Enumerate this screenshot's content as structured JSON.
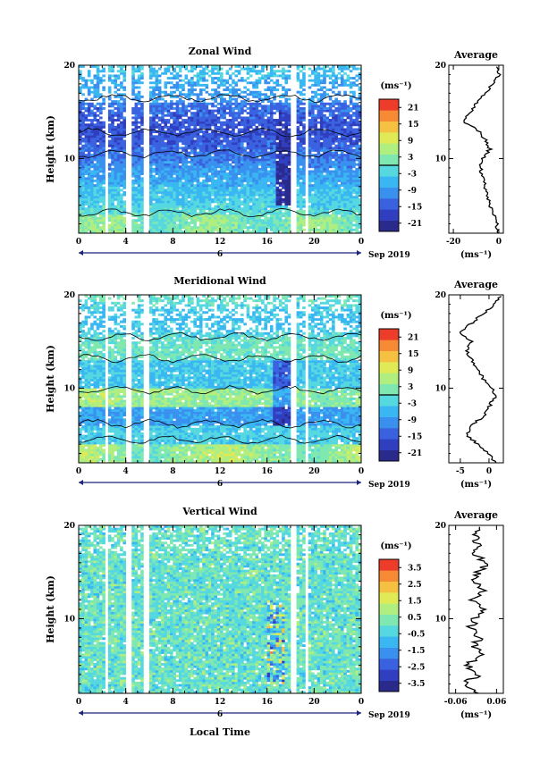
{
  "figure": {
    "xlabel": "Local Time",
    "date_label": "Sep 2019",
    "day_label": "6",
    "ylabel": "Height (km)",
    "side_title": "Average",
    "colormap": [
      "#2a2a8c",
      "#2f3fc0",
      "#3a62e0",
      "#3a90ee",
      "#39b7f2",
      "#55d8e0",
      "#7ee8b0",
      "#b0ee80",
      "#e0ea55",
      "#f6c040",
      "#f78a35",
      "#ee3c2a"
    ]
  },
  "chart_data": [
    {
      "type": "heatmap",
      "title": "Zonal Wind",
      "xlabel": "Local Time",
      "ylabel": "Height (km)",
      "x_range": [
        0,
        24
      ],
      "y_range": [
        2,
        20
      ],
      "xticks": [
        "0",
        "4",
        "8",
        "12",
        "16",
        "20",
        "0"
      ],
      "yticks": [
        "10",
        "20"
      ],
      "colorbar": {
        "unit": "(ms⁻¹)",
        "range": [
          -24,
          24
        ],
        "ticks": [
          "21",
          "15",
          "9",
          "3",
          "-3",
          "-9",
          "-15",
          "-21"
        ]
      },
      "average_profile": {
        "xlim": [
          -22,
          2
        ],
        "xticks": [
          "-20",
          "0"
        ],
        "unit": "(ms⁻¹)",
        "height_km": [
          2,
          3,
          4,
          5,
          6,
          7,
          8,
          9,
          10,
          11,
          12,
          13,
          14,
          15,
          16,
          17,
          18,
          19,
          20
        ],
        "mean": [
          0,
          -1,
          -2,
          -4,
          -5,
          -6,
          -7,
          -8,
          -7,
          -4,
          -6,
          -9,
          -16,
          -12,
          -10,
          -6,
          -3,
          0,
          -1
        ]
      }
    },
    {
      "type": "heatmap",
      "title": "Meridional Wind",
      "xlabel": "Local Time",
      "ylabel": "Height (km)",
      "x_range": [
        0,
        24
      ],
      "y_range": [
        2,
        20
      ],
      "xticks": [
        "0",
        "4",
        "8",
        "12",
        "16",
        "20",
        "0"
      ],
      "yticks": [
        "10",
        "20"
      ],
      "colorbar": {
        "unit": "(ms⁻¹)",
        "range": [
          -24,
          24
        ],
        "ticks": [
          "21",
          "15",
          "9",
          "3",
          "-3",
          "-9",
          "-15",
          "-21"
        ]
      },
      "average_profile": {
        "xlim": [
          -7,
          2.5
        ],
        "xticks": [
          "-5",
          "0"
        ],
        "unit": "(ms⁻¹)",
        "height_km": [
          2,
          3,
          4,
          5,
          6,
          7,
          8,
          9,
          10,
          11,
          12,
          13,
          14,
          15,
          16,
          17,
          18,
          19,
          20
        ],
        "mean": [
          1,
          0,
          -2,
          -4,
          -3,
          -1,
          0,
          1,
          0.5,
          -1,
          -2,
          -3,
          -4,
          -3,
          -5,
          -3,
          -1,
          1,
          2
        ]
      }
    },
    {
      "type": "heatmap",
      "title": "Vertical Wind",
      "xlabel": "Local Time",
      "ylabel": "Height (km)",
      "x_range": [
        0,
        24
      ],
      "y_range": [
        2,
        20
      ],
      "xticks": [
        "0",
        "4",
        "8",
        "12",
        "16",
        "20",
        "0"
      ],
      "yticks": [
        "10",
        "20"
      ],
      "colorbar": {
        "unit": "(ms⁻¹)",
        "range": [
          -4,
          4
        ],
        "ticks": [
          "3.5",
          "2.5",
          "1.5",
          "0.5",
          "-0.5",
          "-1.5",
          "-2.5",
          "-3.5"
        ]
      },
      "average_profile": {
        "xlim": [
          -0.08,
          0.08
        ],
        "xticks": [
          "-0.06",
          "0.06"
        ],
        "unit": "(ms⁻¹)",
        "height_km": [
          2,
          3,
          4,
          5,
          6,
          7,
          8,
          9,
          10,
          11,
          12,
          13,
          14,
          15,
          16,
          17,
          18,
          19,
          20
        ],
        "mean": [
          0.0,
          -0.04,
          0.01,
          -0.03,
          0.02,
          -0.01,
          0.01,
          -0.02,
          0.0,
          0.02,
          -0.01,
          0.02,
          -0.01,
          0.01,
          0.03,
          0.0,
          0.01,
          -0.01,
          0.02
        ]
      }
    }
  ]
}
